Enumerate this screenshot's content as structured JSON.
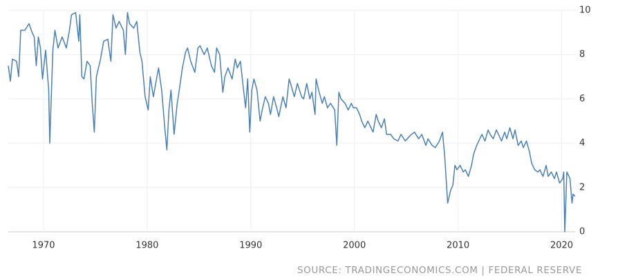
{
  "chart_data": {
    "type": "line",
    "source": "SOURCE: TRADINGECONOMICS.COM | FEDERAL RESERVE",
    "xlim": [
      1966.6,
      2021.3
    ],
    "xticks": [
      1970,
      1980,
      1990,
      2000,
      2010,
      2020
    ],
    "ylim": [
      0,
      10
    ],
    "yticks": [
      0,
      2,
      4,
      6,
      8,
      10
    ],
    "grid": true,
    "x": [
      1966.6,
      1966.8,
      1967.0,
      1967.4,
      1967.6,
      1967.8,
      1968.2,
      1968.6,
      1968.9,
      1969.1,
      1969.3,
      1969.5,
      1969.7,
      1969.9,
      1970.2,
      1970.5,
      1970.6,
      1970.9,
      1971.1,
      1971.4,
      1971.8,
      1972.2,
      1972.5,
      1972.7,
      1973.1,
      1973.4,
      1973.5,
      1973.7,
      1973.9,
      1974.2,
      1974.5,
      1974.7,
      1974.9,
      1975.1,
      1975.5,
      1975.8,
      1976.2,
      1976.5,
      1976.7,
      1977.0,
      1977.3,
      1977.7,
      1977.9,
      1978.1,
      1978.3,
      1978.7,
      1979.0,
      1979.3,
      1979.5,
      1979.8,
      1980.1,
      1980.3,
      1980.6,
      1980.9,
      1981.1,
      1981.4,
      1981.7,
      1981.9,
      1982.1,
      1982.3,
      1982.6,
      1982.9,
      1983.1,
      1983.4,
      1983.7,
      1983.9,
      1984.2,
      1984.6,
      1984.9,
      1985.1,
      1985.5,
      1985.8,
      1986.2,
      1986.5,
      1986.7,
      1987.0,
      1987.3,
      1987.5,
      1987.8,
      1988.2,
      1988.5,
      1988.7,
      1989.0,
      1989.3,
      1989.5,
      1989.7,
      1989.9,
      1990.1,
      1990.3,
      1990.6,
      1990.9,
      1991.1,
      1991.4,
      1991.7,
      1991.9,
      1992.2,
      1992.5,
      1992.7,
      1993.1,
      1993.4,
      1993.7,
      1993.9,
      1994.2,
      1994.5,
      1994.9,
      1995.1,
      1995.4,
      1995.7,
      1995.9,
      1996.2,
      1996.3,
      1996.6,
      1996.9,
      1997.1,
      1997.4,
      1997.7,
      1998.1,
      1998.3,
      1998.5,
      1998.7,
      1999.1,
      1999.4,
      1999.7,
      1999.9,
      2000.2,
      2000.5,
      2000.7,
      2001.0,
      2001.3,
      2001.5,
      2001.8,
      2002.1,
      2002.3,
      2002.6,
      2002.9,
      2003.1,
      2003.5,
      2003.8,
      2004.2,
      2004.5,
      2004.9,
      2005.1,
      2005.5,
      2005.8,
      2006.2,
      2006.5,
      2006.9,
      2007.1,
      2007.5,
      2007.8,
      2008.2,
      2008.5,
      2008.7,
      2009.0,
      2009.3,
      2009.5,
      2009.7,
      2009.9,
      2010.2,
      2010.5,
      2010.7,
      2011.0,
      2011.3,
      2011.5,
      2011.8,
      2012.1,
      2012.3,
      2012.6,
      2012.9,
      2013.1,
      2013.4,
      2013.7,
      2013.9,
      2014.2,
      2014.5,
      2014.7,
      2015.0,
      2015.3,
      2015.5,
      2015.8,
      2016.1,
      2016.3,
      2016.6,
      2016.9,
      2017.1,
      2017.4,
      2017.7,
      2017.9,
      2018.2,
      2018.5,
      2018.7,
      2019.0,
      2019.3,
      2019.5,
      2019.8,
      2020.1,
      2020.2,
      2020.3,
      2020.5,
      2020.8,
      2021.0,
      2021.1,
      2021.3
    ],
    "series": [
      {
        "color": "#4a7fb5",
        "values": [
          7.5,
          6.8,
          7.8,
          7.7,
          7.0,
          9.1,
          9.1,
          9.4,
          9.0,
          8.8,
          7.5,
          8.8,
          8.3,
          6.9,
          8.2,
          6.4,
          4.0,
          8.2,
          9.1,
          8.3,
          8.8,
          8.3,
          9.1,
          9.8,
          9.9,
          8.6,
          9.8,
          7.0,
          6.9,
          7.7,
          7.5,
          5.8,
          4.5,
          7.0,
          7.8,
          8.6,
          8.7,
          7.7,
          9.8,
          9.2,
          9.5,
          9.1,
          8.0,
          9.9,
          9.4,
          9.2,
          9.5,
          8.1,
          7.7,
          6.1,
          5.5,
          7.0,
          6.1,
          6.9,
          7.4,
          6.4,
          4.7,
          3.7,
          5.5,
          6.4,
          4.4,
          5.8,
          6.4,
          7.4,
          8.1,
          8.3,
          7.7,
          7.2,
          8.3,
          8.4,
          8.0,
          8.3,
          7.5,
          7.2,
          8.3,
          8.0,
          6.3,
          7.0,
          7.4,
          6.9,
          7.8,
          7.4,
          7.7,
          6.4,
          5.6,
          6.9,
          4.5,
          6.4,
          6.9,
          6.4,
          5.0,
          5.5,
          6.1,
          5.8,
          5.3,
          6.1,
          5.6,
          5.2,
          6.1,
          5.6,
          6.9,
          6.6,
          6.1,
          6.7,
          6.1,
          6.0,
          6.7,
          6.0,
          6.3,
          5.3,
          6.9,
          6.3,
          5.8,
          6.1,
          5.6,
          5.8,
          5.5,
          3.9,
          6.3,
          6.0,
          5.8,
          5.5,
          5.8,
          5.6,
          5.6,
          5.3,
          5.0,
          4.7,
          5.0,
          4.8,
          4.5,
          5.3,
          5.0,
          4.7,
          5.1,
          4.4,
          4.4,
          4.2,
          4.1,
          4.4,
          4.1,
          4.2,
          4.4,
          4.5,
          4.2,
          4.4,
          3.9,
          4.2,
          3.9,
          3.8,
          4.1,
          4.5,
          3.5,
          1.3,
          1.9,
          2.1,
          3.0,
          2.8,
          3.0,
          2.7,
          2.8,
          2.5,
          3.0,
          3.5,
          3.9,
          4.2,
          4.4,
          4.1,
          4.6,
          4.4,
          4.2,
          4.6,
          4.4,
          4.1,
          4.5,
          4.2,
          4.7,
          4.2,
          4.6,
          3.9,
          4.1,
          3.8,
          4.1,
          3.6,
          3.1,
          2.8,
          2.7,
          2.8,
          2.5,
          3.0,
          2.5,
          2.7,
          2.4,
          2.7,
          2.2,
          2.4,
          2.7,
          0.0,
          2.7,
          2.4,
          1.3,
          1.7,
          1.6
        ]
      }
    ]
  }
}
